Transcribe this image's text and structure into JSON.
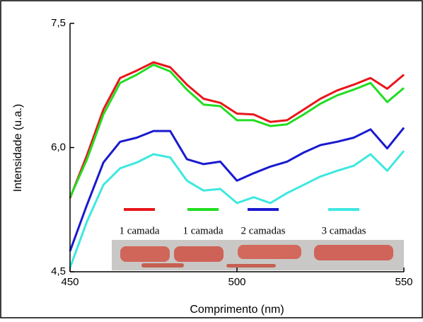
{
  "chart_data": {
    "type": "line",
    "x_label": "Comprimento (nm)",
    "y_label": "Intensidade (u.a.)",
    "x": [
      450,
      455,
      460,
      465,
      470,
      475,
      480,
      485,
      490,
      495,
      500,
      505,
      510,
      515,
      520,
      525,
      530,
      535,
      540,
      545,
      550
    ],
    "series": [
      {
        "name": "1 camada",
        "color": "#e8161b",
        "values": [
          5.39,
          5.9,
          6.46,
          6.84,
          6.93,
          7.03,
          6.97,
          6.76,
          6.59,
          6.54,
          6.41,
          6.4,
          6.31,
          6.33,
          6.46,
          6.59,
          6.69,
          6.76,
          6.84,
          6.71,
          6.88
        ]
      },
      {
        "name": "1 camada",
        "color": "#22dd22",
        "values": [
          5.4,
          5.85,
          6.4,
          6.78,
          6.88,
          7.0,
          6.92,
          6.7,
          6.52,
          6.5,
          6.33,
          6.33,
          6.26,
          6.28,
          6.4,
          6.53,
          6.63,
          6.7,
          6.78,
          6.55,
          6.72
        ]
      },
      {
        "name": "2 camadas",
        "color": "#1a1ad0",
        "values": [
          4.75,
          5.3,
          5.82,
          6.07,
          6.12,
          6.2,
          6.2,
          5.86,
          5.8,
          5.83,
          5.6,
          5.69,
          5.77,
          5.83,
          5.94,
          6.03,
          6.07,
          6.12,
          6.22,
          5.99,
          6.24
        ]
      },
      {
        "name": "3 camadas",
        "color": "#3ee8e0",
        "values": [
          4.55,
          5.1,
          5.55,
          5.75,
          5.82,
          5.92,
          5.88,
          5.6,
          5.48,
          5.5,
          5.33,
          5.4,
          5.33,
          5.45,
          5.55,
          5.65,
          5.72,
          5.78,
          5.92,
          5.72,
          5.96
        ]
      }
    ],
    "xlim": [
      450,
      550
    ],
    "xticks": [
      450,
      500,
      550
    ],
    "ylim": [
      4.5,
      7.5
    ],
    "yticks": [
      {
        "value": 4.5,
        "label": "4,5"
      },
      {
        "value": 6.0,
        "label": "6,0"
      },
      {
        "value": 7.5,
        "label": "7,5"
      }
    ]
  }
}
